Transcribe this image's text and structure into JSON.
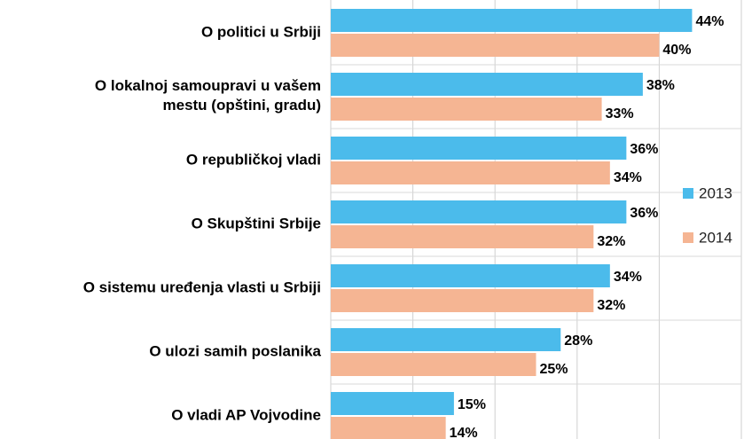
{
  "chart_data": {
    "type": "hbar",
    "categories": [
      "O politici u Srbiji",
      "O lokalnoj samoupravi u vašem\nmestu (opštini, gradu)",
      "O republičkoj vladi",
      "O Skupštini Srbije",
      "O sistemu uređenja vlasti u Srbiji",
      "O ulozi samih poslanika",
      "O vladi AP Vojvodine"
    ],
    "series": [
      {
        "name": "2013",
        "color": "#4bbbeb",
        "values": [
          44,
          38,
          36,
          36,
          34,
          28,
          15
        ],
        "value_labels": [
          "44%",
          "38%",
          "36%",
          "36%",
          "34%",
          "28%",
          "15%"
        ]
      },
      {
        "name": "2014",
        "color": "#f5b593",
        "values": [
          40,
          33,
          34,
          32,
          32,
          25,
          14
        ],
        "value_labels": [
          "40%",
          "33%",
          "34%",
          "32%",
          "32%",
          "25%",
          "14%"
        ]
      }
    ],
    "xlim": [
      0,
      50
    ],
    "xticks": [
      0,
      10,
      20,
      30,
      40,
      50
    ],
    "grid": true,
    "legend": "right"
  }
}
